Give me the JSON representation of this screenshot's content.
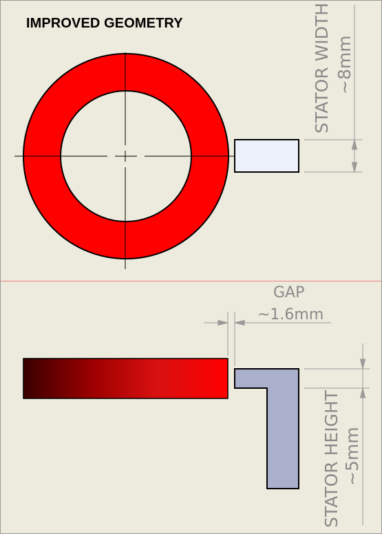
{
  "title": "IMPROVED GEOMETRY",
  "stator_width": {
    "label": "STATOR WIDTH",
    "value": "~8mm"
  },
  "gap": {
    "label": "GAP",
    "value": "~1.6mm"
  },
  "stator_height": {
    "label": "STATOR HEIGHT",
    "value": "~5mm"
  },
  "colors": {
    "ring": "#ff0000",
    "stator": "#aab0cc",
    "stator_side": "#ecf0fb",
    "background": "#ecebde",
    "dimension": "#8a8a8a"
  }
}
